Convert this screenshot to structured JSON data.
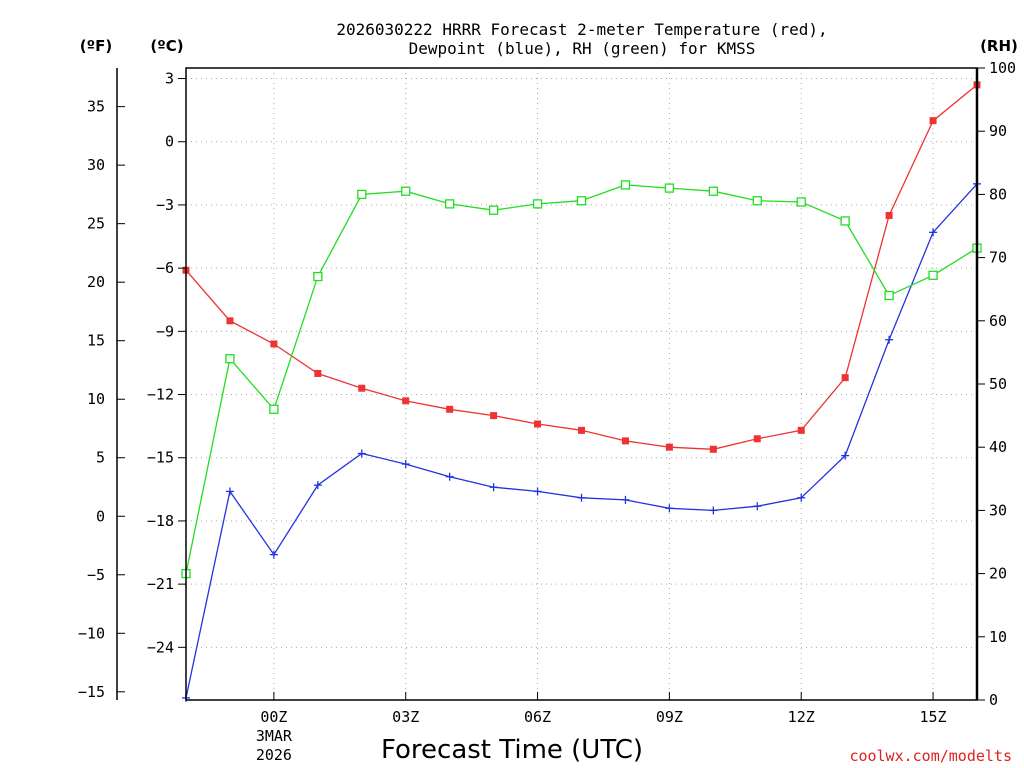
{
  "chart_data": {
    "type": "line",
    "title_line1": "2026030222 HRRR Forecast 2-meter Temperature (red),",
    "title_line2": "Dewpoint (blue), RH (green) for KMSS",
    "xlabel": "Forecast Time (UTC)",
    "credit": "coolwx.com/modelts",
    "units": {
      "fahrenheit": "(ºF)",
      "celsius": "(ºC)",
      "rh": "(RH)"
    },
    "x": [
      -2,
      -1,
      0,
      1,
      2,
      3,
      4,
      5,
      6,
      7,
      8,
      9,
      10,
      11,
      12,
      13,
      14,
      15,
      16
    ],
    "xlim": [
      -2,
      16
    ],
    "x_ticks": [
      {
        "x": 0,
        "label": "00Z",
        "sub1": "3MAR",
        "sub2": "2026"
      },
      {
        "x": 3,
        "label": "03Z"
      },
      {
        "x": 6,
        "label": "06Z"
      },
      {
        "x": 9,
        "label": "09Z"
      },
      {
        "x": 12,
        "label": "12Z"
      },
      {
        "x": 15,
        "label": "15Z"
      }
    ],
    "celsius_axis": {
      "lim": [
        -26.5,
        3.5
      ],
      "ticks": [
        3,
        0,
        -3,
        -6,
        -9,
        -12,
        -15,
        -18,
        -21,
        -24
      ]
    },
    "fahrenheit_axis": {
      "ticks": [
        35,
        30,
        25,
        20,
        15,
        10,
        5,
        0,
        -5,
        -10,
        -15
      ]
    },
    "rh_axis": {
      "lim": [
        0,
        100
      ],
      "ticks": [
        0,
        10,
        20,
        30,
        40,
        50,
        60,
        70,
        80,
        90,
        100
      ]
    },
    "grid": true,
    "series": [
      {
        "name": "Temperature",
        "axis": "celsius",
        "color": "#ee3333",
        "marker": "filled-square",
        "values": [
          -6.1,
          -8.5,
          -9.6,
          -11.0,
          -11.7,
          -12.3,
          -12.7,
          -13.0,
          -13.4,
          -13.7,
          -14.2,
          -14.5,
          -14.6,
          -14.1,
          -13.7,
          -11.2,
          -3.5,
          1.0,
          2.7
        ]
      },
      {
        "name": "Dewpoint",
        "axis": "celsius",
        "color": "#2233dd",
        "marker": "plus",
        "values": [
          -26.4,
          -16.6,
          -19.6,
          -16.3,
          -14.8,
          -15.3,
          -15.9,
          -16.4,
          -16.6,
          -16.9,
          -17.0,
          -17.4,
          -17.5,
          -17.3,
          -16.9,
          -14.9,
          -9.4,
          -4.3,
          -2.0
        ]
      },
      {
        "name": "RH",
        "axis": "rh",
        "color": "#22dd22",
        "marker": "open-square",
        "values": [
          20.0,
          54.0,
          46.0,
          67.0,
          80.0,
          80.5,
          78.5,
          77.5,
          78.5,
          79.0,
          81.5,
          81.0,
          80.5,
          79.0,
          78.8,
          75.8,
          64.0,
          67.2,
          71.5
        ]
      }
    ]
  }
}
